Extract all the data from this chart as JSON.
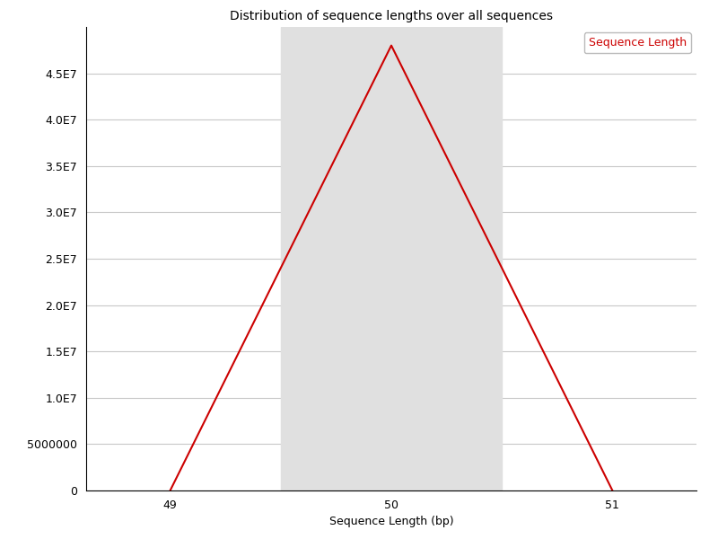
{
  "title": "Distribution of sequence lengths over all sequences",
  "xlabel": "Sequence Length (bp)",
  "ylabel": "",
  "x_values": [
    49.0,
    49.1,
    49.2,
    49.3,
    49.4,
    49.5,
    49.6,
    49.7,
    49.8,
    49.9,
    50.0,
    50.1,
    50.2,
    50.3,
    50.4,
    50.5,
    50.6,
    50.7,
    50.8,
    50.9,
    51.0
  ],
  "y_values": [
    0,
    4800000,
    9600000,
    14400000,
    19200000,
    24000000,
    28800000,
    33600000,
    38400000,
    43200000,
    48000000,
    43200000,
    38400000,
    33600000,
    28800000,
    24000000,
    19200000,
    14400000,
    9600000,
    4800000,
    0
  ],
  "line_color": "#cc0000",
  "line_width": 1.5,
  "shade_xmin": 49.5,
  "shade_xmax": 50.5,
  "shade_color": "#e0e0e0",
  "legend_label": "Sequence Length",
  "legend_text_color": "#cc0000",
  "xticks": [
    49,
    50,
    51
  ],
  "ytick_values": [
    0,
    5000000,
    10000000,
    15000000,
    20000000,
    25000000,
    30000000,
    35000000,
    40000000,
    45000000
  ],
  "ytick_labels": [
    "0",
    "5000000",
    "1.0E7",
    "1.5E7",
    "2.0E7",
    "2.5E7",
    "3.0E7",
    "3.5E7",
    "4.0E7",
    "4.5E7"
  ],
  "ylim_min": 0,
  "ylim_max": 50000000,
  "xlim_min": 48.62,
  "xlim_max": 51.38,
  "grid_color": "#c8c8c8",
  "background_color": "#ffffff",
  "title_fontsize": 10,
  "axis_fontsize": 9,
  "tick_fontsize": 9
}
